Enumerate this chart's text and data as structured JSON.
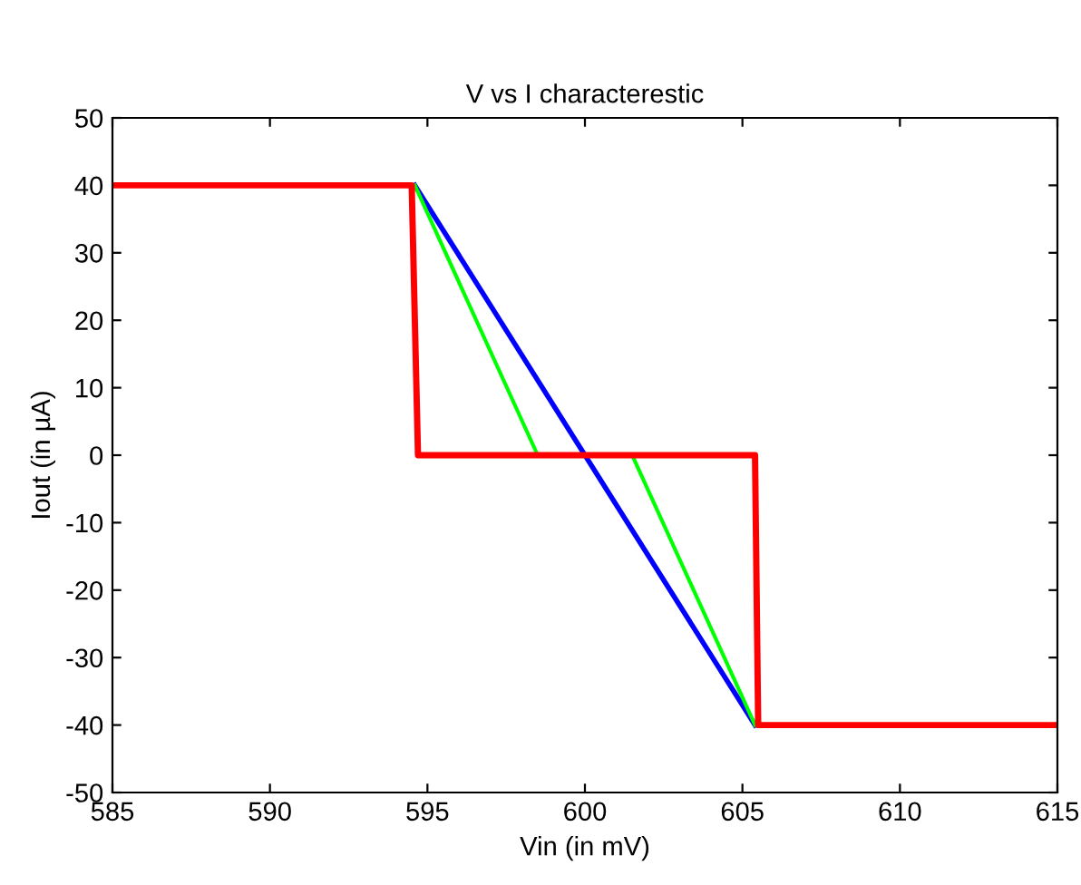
{
  "chart_data": {
    "type": "line",
    "title": "V vs I characterestic",
    "xlabel": "Vin (in mV)",
    "ylabel": "Iout (in µA)",
    "xlim": [
      585,
      615
    ],
    "xticks": [
      585,
      590,
      595,
      600,
      605,
      610,
      615
    ],
    "ylim": [
      -50,
      50
    ],
    "yticks": [
      -50,
      -40,
      -30,
      -20,
      -10,
      0,
      10,
      20,
      30,
      40,
      50
    ],
    "grid": false,
    "legend": false,
    "marker": "none",
    "line_style": "solid",
    "series": [
      {
        "color": "#0000ff",
        "x": [
          594.6,
          605.4
        ],
        "values": [
          40,
          -40
        ]
      },
      {
        "color": "#00ff00",
        "x": [
          594.6,
          598.5,
          601.5,
          605.4
        ],
        "values": [
          40,
          0,
          0,
          -40
        ]
      },
      {
        "color": "#ff0000",
        "x": [
          585,
          594.5,
          594.6,
          594.7,
          605.4,
          605.5,
          615
        ],
        "values": [
          40,
          40,
          20,
          0,
          0,
          -40,
          -40
        ]
      }
    ]
  }
}
